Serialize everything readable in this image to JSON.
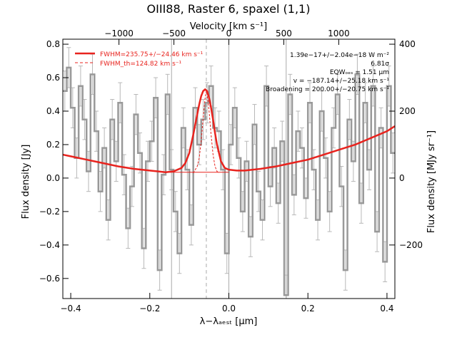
{
  "chart_data": {
    "type": "line",
    "title": "OIII88, Raster 6, spaxel (1,1)",
    "top_axis": {
      "label": "Velocity [km s⁻¹]",
      "ticks": [
        -1000,
        -500,
        0,
        500,
        1000
      ],
      "tick_labels": [
        "−1000",
        "−500",
        "0",
        "500",
        "1000"
      ]
    },
    "x_axis": {
      "label": "λ−λₐₑₛₜ [μm]",
      "range": [
        -0.42,
        0.42
      ],
      "ticks": [
        -0.4,
        -0.2,
        0.0,
        0.2,
        0.4
      ],
      "tick_labels": [
        "−0.4",
        "−0.2",
        "0.0",
        "0.2",
        "0.4"
      ]
    },
    "y_axis": {
      "label": "Flux density [Jy]",
      "range": [
        -0.72,
        0.83
      ],
      "ticks": [
        -0.6,
        -0.4,
        -0.2,
        0.0,
        0.2,
        0.4,
        0.6,
        0.8
      ],
      "tick_labels": [
        "−0.6",
        "−0.4",
        "−0.2",
        "0.0",
        "0.2",
        "0.4",
        "0.6",
        "0.8"
      ]
    },
    "right_axis": {
      "label": "Flux density [MJy sr⁻¹]",
      "ticks": [
        -200,
        0,
        200,
        400
      ],
      "tick_labels": [
        "−200",
        "0",
        "200",
        "400"
      ]
    },
    "legend": {
      "placement": "top-left",
      "entries": [
        "FWHM=235.75+/−24.46 km s⁻¹",
        "FWHM_th=124.82 km s⁻¹"
      ]
    },
    "annotations": {
      "placement": "top-right",
      "lines": [
        "1.39e−17+/−2.04e−18 W m⁻²",
        "6.81σ",
        "EQWₒₑₛ = 1.51 μm",
        "v = −187.14+/−25.18 km s⁻¹",
        "Broadening = 200.00+/−20.75 km s⁻¹"
      ]
    },
    "vertical_lines": [
      -0.145,
      -0.057,
      0.0,
      0.145
    ],
    "series": [
      {
        "style": "step-with-errorbars",
        "color": "#999999",
        "x": [
          -0.42,
          -0.41,
          -0.4,
          -0.39,
          -0.38,
          -0.37,
          -0.36,
          -0.35,
          -0.34,
          -0.33,
          -0.32,
          -0.31,
          -0.3,
          -0.29,
          -0.28,
          -0.27,
          -0.26,
          -0.25,
          -0.24,
          -0.23,
          -0.22,
          -0.21,
          -0.2,
          -0.19,
          -0.18,
          -0.17,
          -0.16,
          -0.15,
          -0.14,
          -0.13,
          -0.12,
          -0.11,
          -0.1,
          -0.09,
          -0.08,
          -0.07,
          -0.06,
          -0.05,
          -0.04,
          -0.03,
          -0.02,
          -0.01,
          0.0,
          0.01,
          0.02,
          0.03,
          0.04,
          0.05,
          0.06,
          0.07,
          0.08,
          0.09,
          0.1,
          0.11,
          0.12,
          0.13,
          0.14,
          0.15,
          0.16,
          0.17,
          0.18,
          0.19,
          0.2,
          0.21,
          0.22,
          0.23,
          0.24,
          0.25,
          0.26,
          0.27,
          0.28,
          0.29,
          0.3,
          0.31,
          0.32,
          0.33,
          0.34,
          0.35,
          0.36,
          0.37,
          0.38,
          0.39,
          0.4,
          0.41
        ],
        "y": [
          0.52,
          0.66,
          0.42,
          0.12,
          0.55,
          0.35,
          0.04,
          0.62,
          0.28,
          -0.08,
          0.18,
          -0.25,
          0.35,
          0.1,
          0.45,
          0.02,
          -0.3,
          -0.05,
          0.38,
          0.15,
          -0.42,
          0.1,
          0.22,
          0.48,
          -0.55,
          0.02,
          0.5,
          0.05,
          -0.2,
          -0.45,
          0.3,
          0.05,
          -0.28,
          0.42,
          0.2,
          0.35,
          0.45,
          0.55,
          0.3,
          0.28,
          0.05,
          -0.45,
          0.2,
          0.42,
          0.12,
          -0.2,
          0.1,
          -0.35,
          0.32,
          -0.08,
          -0.25,
          0.55,
          -0.05,
          0.18,
          -0.15,
          0.22,
          -0.7,
          0.5,
          -0.1,
          0.28,
          0.18,
          -0.12,
          0.45,
          0.05,
          -0.25,
          0.4,
          0.12,
          -0.2,
          0.3,
          0.5,
          -0.05,
          -0.55,
          0.35,
          0.1,
          0.62,
          -0.15,
          0.45,
          0.05,
          0.55,
          -0.32,
          0.3,
          -0.5,
          0.55,
          0.15
        ],
        "error": [
          0.12,
          0.12,
          0.12,
          0.12,
          0.12,
          0.12,
          0.12,
          0.12,
          0.12,
          0.12,
          0.12,
          0.12,
          0.12,
          0.12,
          0.12,
          0.12,
          0.12,
          0.12,
          0.12,
          0.12,
          0.12,
          0.12,
          0.12,
          0.12,
          0.12,
          0.12,
          0.12,
          0.12,
          0.12,
          0.12,
          0.12,
          0.12,
          0.12,
          0.12,
          0.12,
          0.12,
          0.12,
          0.12,
          0.12,
          0.12,
          0.12,
          0.12,
          0.12,
          0.12,
          0.12,
          0.12,
          0.12,
          0.12,
          0.12,
          0.12,
          0.12,
          0.12,
          0.12,
          0.12,
          0.12,
          0.12,
          0.12,
          0.12,
          0.12,
          0.12,
          0.12,
          0.12,
          0.12,
          0.12,
          0.12,
          0.12,
          0.12,
          0.12,
          0.12,
          0.12,
          0.12,
          0.12,
          0.12,
          0.12,
          0.12,
          0.12,
          0.12,
          0.12,
          0.12,
          0.12,
          0.12,
          0.12,
          0.12,
          0.12
        ]
      },
      {
        "style": "line",
        "color": "#e8231e",
        "x": [
          -0.42,
          -0.4,
          -0.36,
          -0.32,
          -0.28,
          -0.24,
          -0.2,
          -0.18,
          -0.16,
          -0.14,
          -0.12,
          -0.11,
          -0.1,
          -0.09,
          -0.08,
          -0.075,
          -0.07,
          -0.065,
          -0.06,
          -0.055,
          -0.05,
          -0.045,
          -0.04,
          -0.035,
          -0.03,
          -0.02,
          -0.01,
          0.0,
          0.02,
          0.04,
          0.08,
          0.12,
          0.16,
          0.2,
          0.24,
          0.28,
          0.32,
          0.36,
          0.4,
          0.42
        ],
        "y": [
          0.14,
          0.13,
          0.11,
          0.09,
          0.07,
          0.055,
          0.045,
          0.04,
          0.035,
          0.04,
          0.06,
          0.09,
          0.15,
          0.26,
          0.38,
          0.44,
          0.49,
          0.52,
          0.53,
          0.52,
          0.48,
          0.42,
          0.35,
          0.27,
          0.2,
          0.1,
          0.06,
          0.05,
          0.045,
          0.045,
          0.055,
          0.07,
          0.09,
          0.11,
          0.14,
          0.17,
          0.2,
          0.24,
          0.28,
          0.31
        ]
      },
      {
        "style": "dashed",
        "color": "#e8231e",
        "x": [
          -0.09,
          -0.08,
          -0.075,
          -0.07,
          -0.065,
          -0.06,
          -0.057,
          -0.055,
          -0.05,
          -0.045,
          -0.04,
          -0.035,
          -0.03,
          -0.025
        ],
        "y": [
          0.03,
          0.07,
          0.12,
          0.22,
          0.36,
          0.48,
          0.52,
          0.5,
          0.4,
          0.26,
          0.14,
          0.07,
          0.04,
          0.03
        ]
      },
      {
        "style": "line-thin",
        "color": "#e8231e",
        "x": [
          -0.16,
          0.0
        ],
        "y": [
          0.035,
          0.035
        ]
      }
    ]
  }
}
